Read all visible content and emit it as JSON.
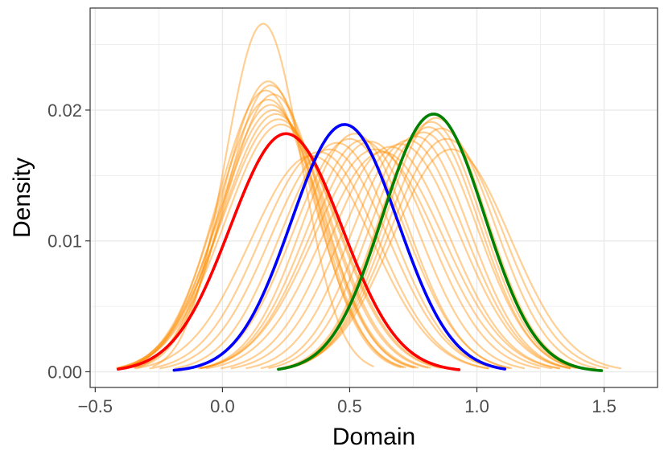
{
  "chart_data": {
    "type": "line",
    "title": "",
    "xlabel": "Domain",
    "ylabel": "Density",
    "xlim": [
      -0.52,
      1.71
    ],
    "ylim": [
      -0.0012,
      0.0278
    ],
    "x_ticks": [
      "−0.5",
      "0.0",
      "0.5",
      "1.0",
      "1.5"
    ],
    "x_tick_values": [
      -0.5,
      0.0,
      0.5,
      1.0,
      1.5
    ],
    "y_ticks": [
      "0.00",
      "0.01",
      "0.02"
    ],
    "y_tick_values": [
      0.0,
      0.01,
      0.02
    ],
    "grid": true,
    "legend": "none",
    "colors": {
      "background_curves": "#FF8C00",
      "red": "#FF0000",
      "blue": "#0000FF",
      "green": "#008000",
      "grid": "#EBEBEB",
      "panel_border": "#333333"
    },
    "highlighted_series": [
      {
        "color": "red",
        "mean": 0.25,
        "sd": 0.22,
        "peak": 0.0182,
        "x_range": [
          -0.41,
          0.93
        ]
      },
      {
        "color": "blue",
        "mean": 0.48,
        "sd": 0.21,
        "peak": 0.0189,
        "x_range": [
          -0.19,
          1.11
        ]
      },
      {
        "color": "green",
        "mean": 0.83,
        "sd": 0.2,
        "peak": 0.0197,
        "x_range": [
          0.22,
          1.49
        ]
      }
    ],
    "background_series": [
      {
        "mean": 0.16,
        "sd": 0.15,
        "peak": 0.0266
      },
      {
        "mean": 0.18,
        "sd": 0.18,
        "peak": 0.0222
      },
      {
        "mean": 0.19,
        "sd": 0.18,
        "peak": 0.0219
      },
      {
        "mean": 0.17,
        "sd": 0.19,
        "peak": 0.0215
      },
      {
        "mean": 0.2,
        "sd": 0.19,
        "peak": 0.0212
      },
      {
        "mean": 0.18,
        "sd": 0.2,
        "peak": 0.0208
      },
      {
        "mean": 0.19,
        "sd": 0.2,
        "peak": 0.0204
      },
      {
        "mean": 0.2,
        "sd": 0.21,
        "peak": 0.02
      },
      {
        "mean": 0.21,
        "sd": 0.21,
        "peak": 0.0197
      },
      {
        "mean": 0.22,
        "sd": 0.22,
        "peak": 0.0193
      },
      {
        "mean": 0.23,
        "sd": 0.22,
        "peak": 0.0189
      },
      {
        "mean": 0.35,
        "sd": 0.24,
        "peak": 0.0165
      },
      {
        "mean": 0.38,
        "sd": 0.23,
        "peak": 0.0168
      },
      {
        "mean": 0.42,
        "sd": 0.23,
        "peak": 0.017
      },
      {
        "mean": 0.45,
        "sd": 0.22,
        "peak": 0.0175
      },
      {
        "mean": 0.5,
        "sd": 0.22,
        "peak": 0.0178
      },
      {
        "mean": 0.52,
        "sd": 0.21,
        "peak": 0.0182
      },
      {
        "mean": 0.55,
        "sd": 0.22,
        "peak": 0.0177
      },
      {
        "mean": 0.58,
        "sd": 0.23,
        "peak": 0.0176
      },
      {
        "mean": 0.6,
        "sd": 0.24,
        "peak": 0.017
      },
      {
        "mean": 0.63,
        "sd": 0.24,
        "peak": 0.0168
      },
      {
        "mean": 0.66,
        "sd": 0.23,
        "peak": 0.0172
      },
      {
        "mean": 0.7,
        "sd": 0.23,
        "peak": 0.0174
      },
      {
        "mean": 0.73,
        "sd": 0.22,
        "peak": 0.0177
      },
      {
        "mean": 0.76,
        "sd": 0.21,
        "peak": 0.018
      },
      {
        "mean": 0.79,
        "sd": 0.21,
        "peak": 0.0183
      },
      {
        "mean": 0.81,
        "sd": 0.2,
        "peak": 0.0187
      },
      {
        "mean": 0.82,
        "sd": 0.2,
        "peak": 0.0191
      },
      {
        "mean": 0.84,
        "sd": 0.2,
        "peak": 0.0194
      },
      {
        "mean": 0.86,
        "sd": 0.21,
        "peak": 0.0186
      },
      {
        "mean": 0.88,
        "sd": 0.22,
        "peak": 0.0178
      },
      {
        "mean": 0.9,
        "sd": 0.23,
        "peak": 0.017
      }
    ]
  }
}
